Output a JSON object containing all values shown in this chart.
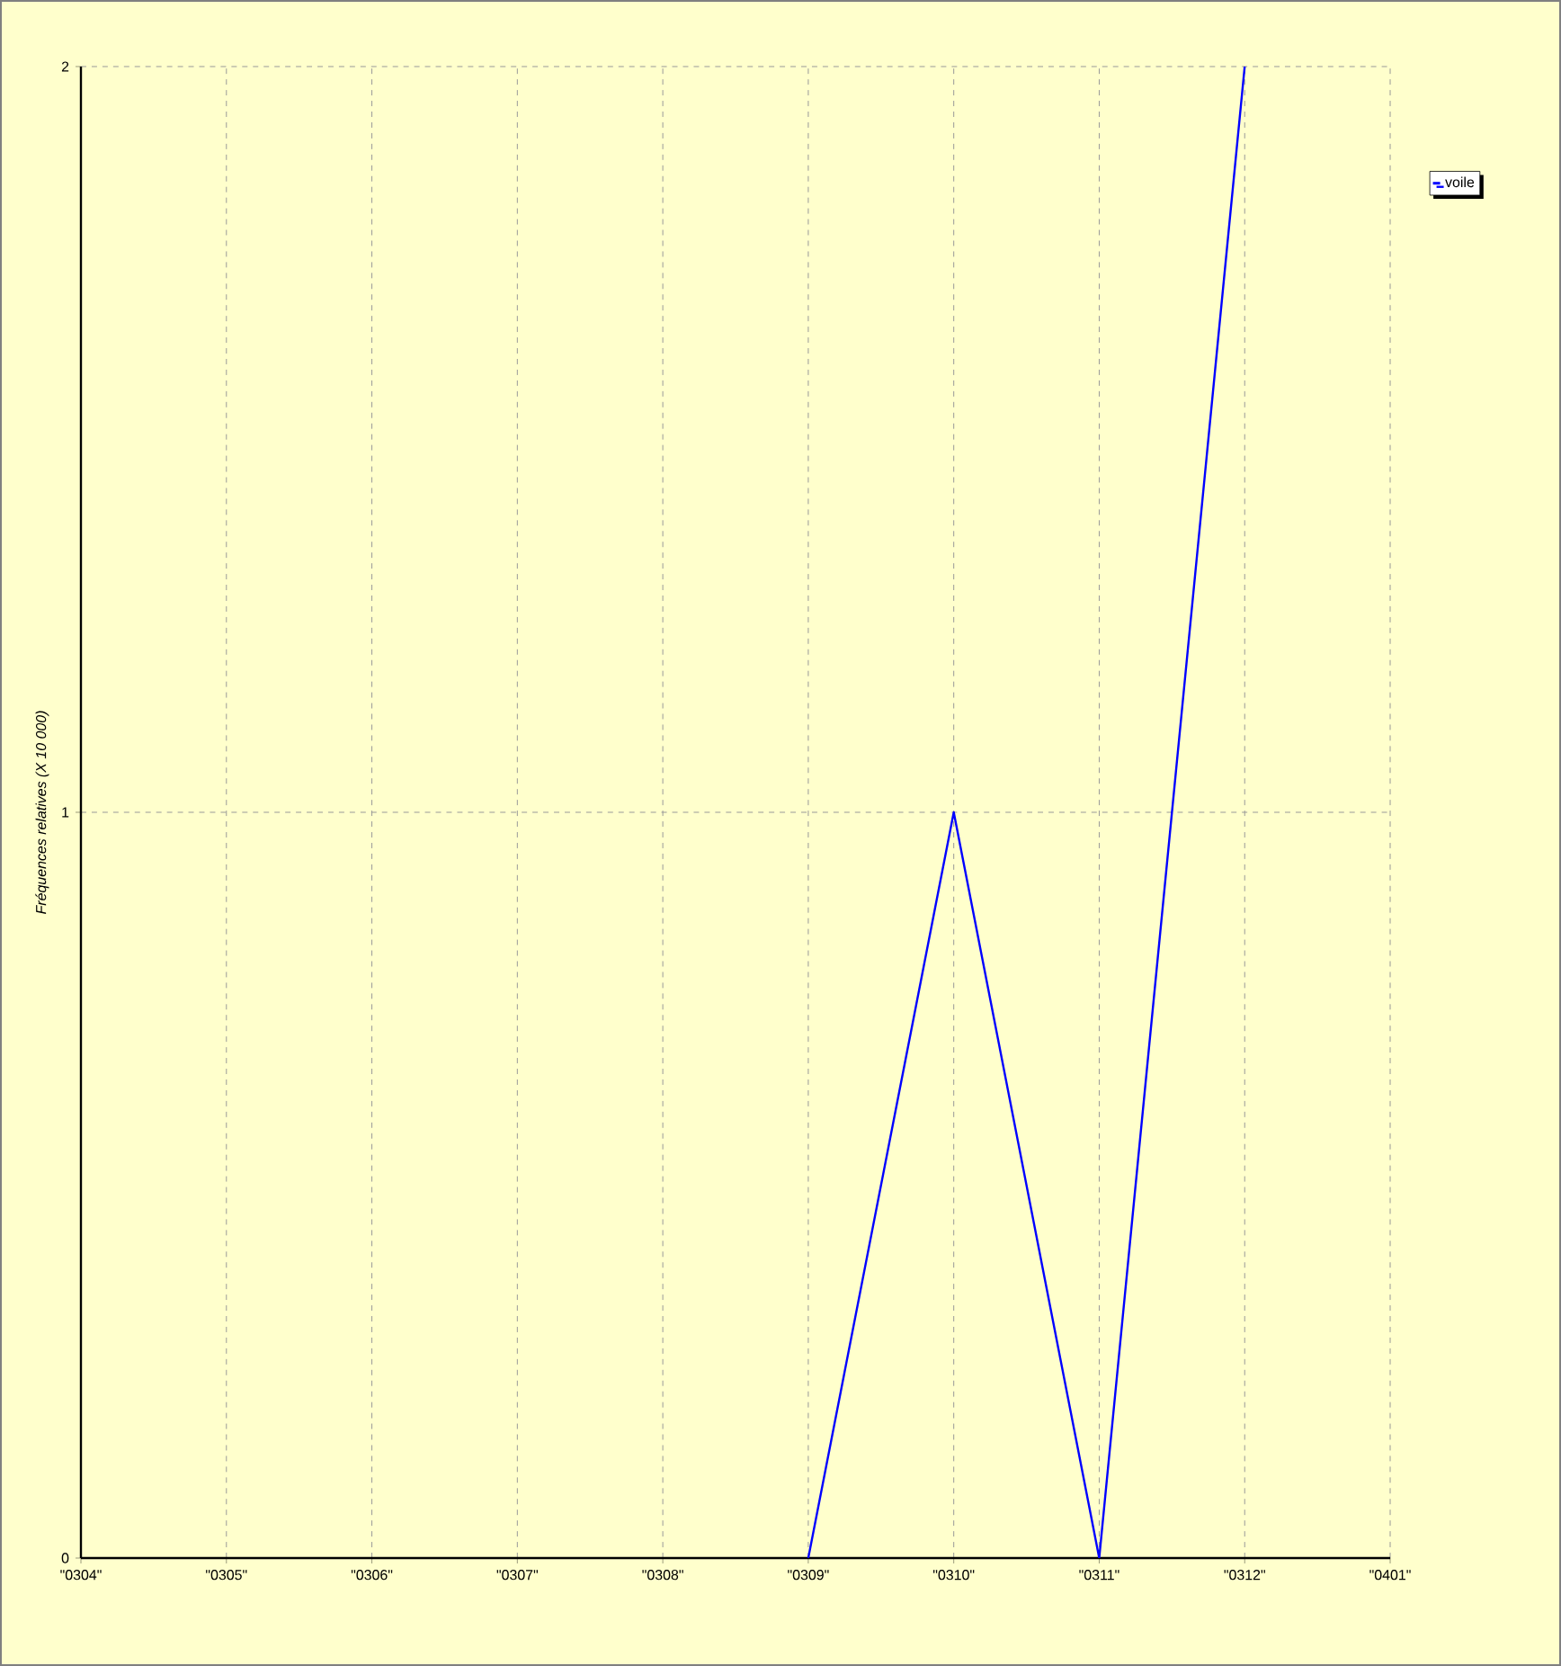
{
  "chart_data": {
    "type": "line",
    "ylabel": "Fréquences relatives (X 10 000)",
    "categories": [
      "\"0304\"",
      "\"0305\"",
      "\"0306\"",
      "\"0307\"",
      "\"0308\"",
      "\"0309\"",
      "\"0310\"",
      "\"0311\"",
      "\"0312\"",
      "\"0401\""
    ],
    "series": [
      {
        "name": "voile",
        "color": "#0000ff",
        "values": [
          null,
          null,
          null,
          null,
          null,
          0,
          1,
          0,
          2,
          null
        ]
      }
    ],
    "ylim": [
      0,
      2
    ],
    "yticks": [
      0,
      1,
      2
    ],
    "grid": true,
    "legend": "top right",
    "marker": "none",
    "line_style": "solid"
  }
}
